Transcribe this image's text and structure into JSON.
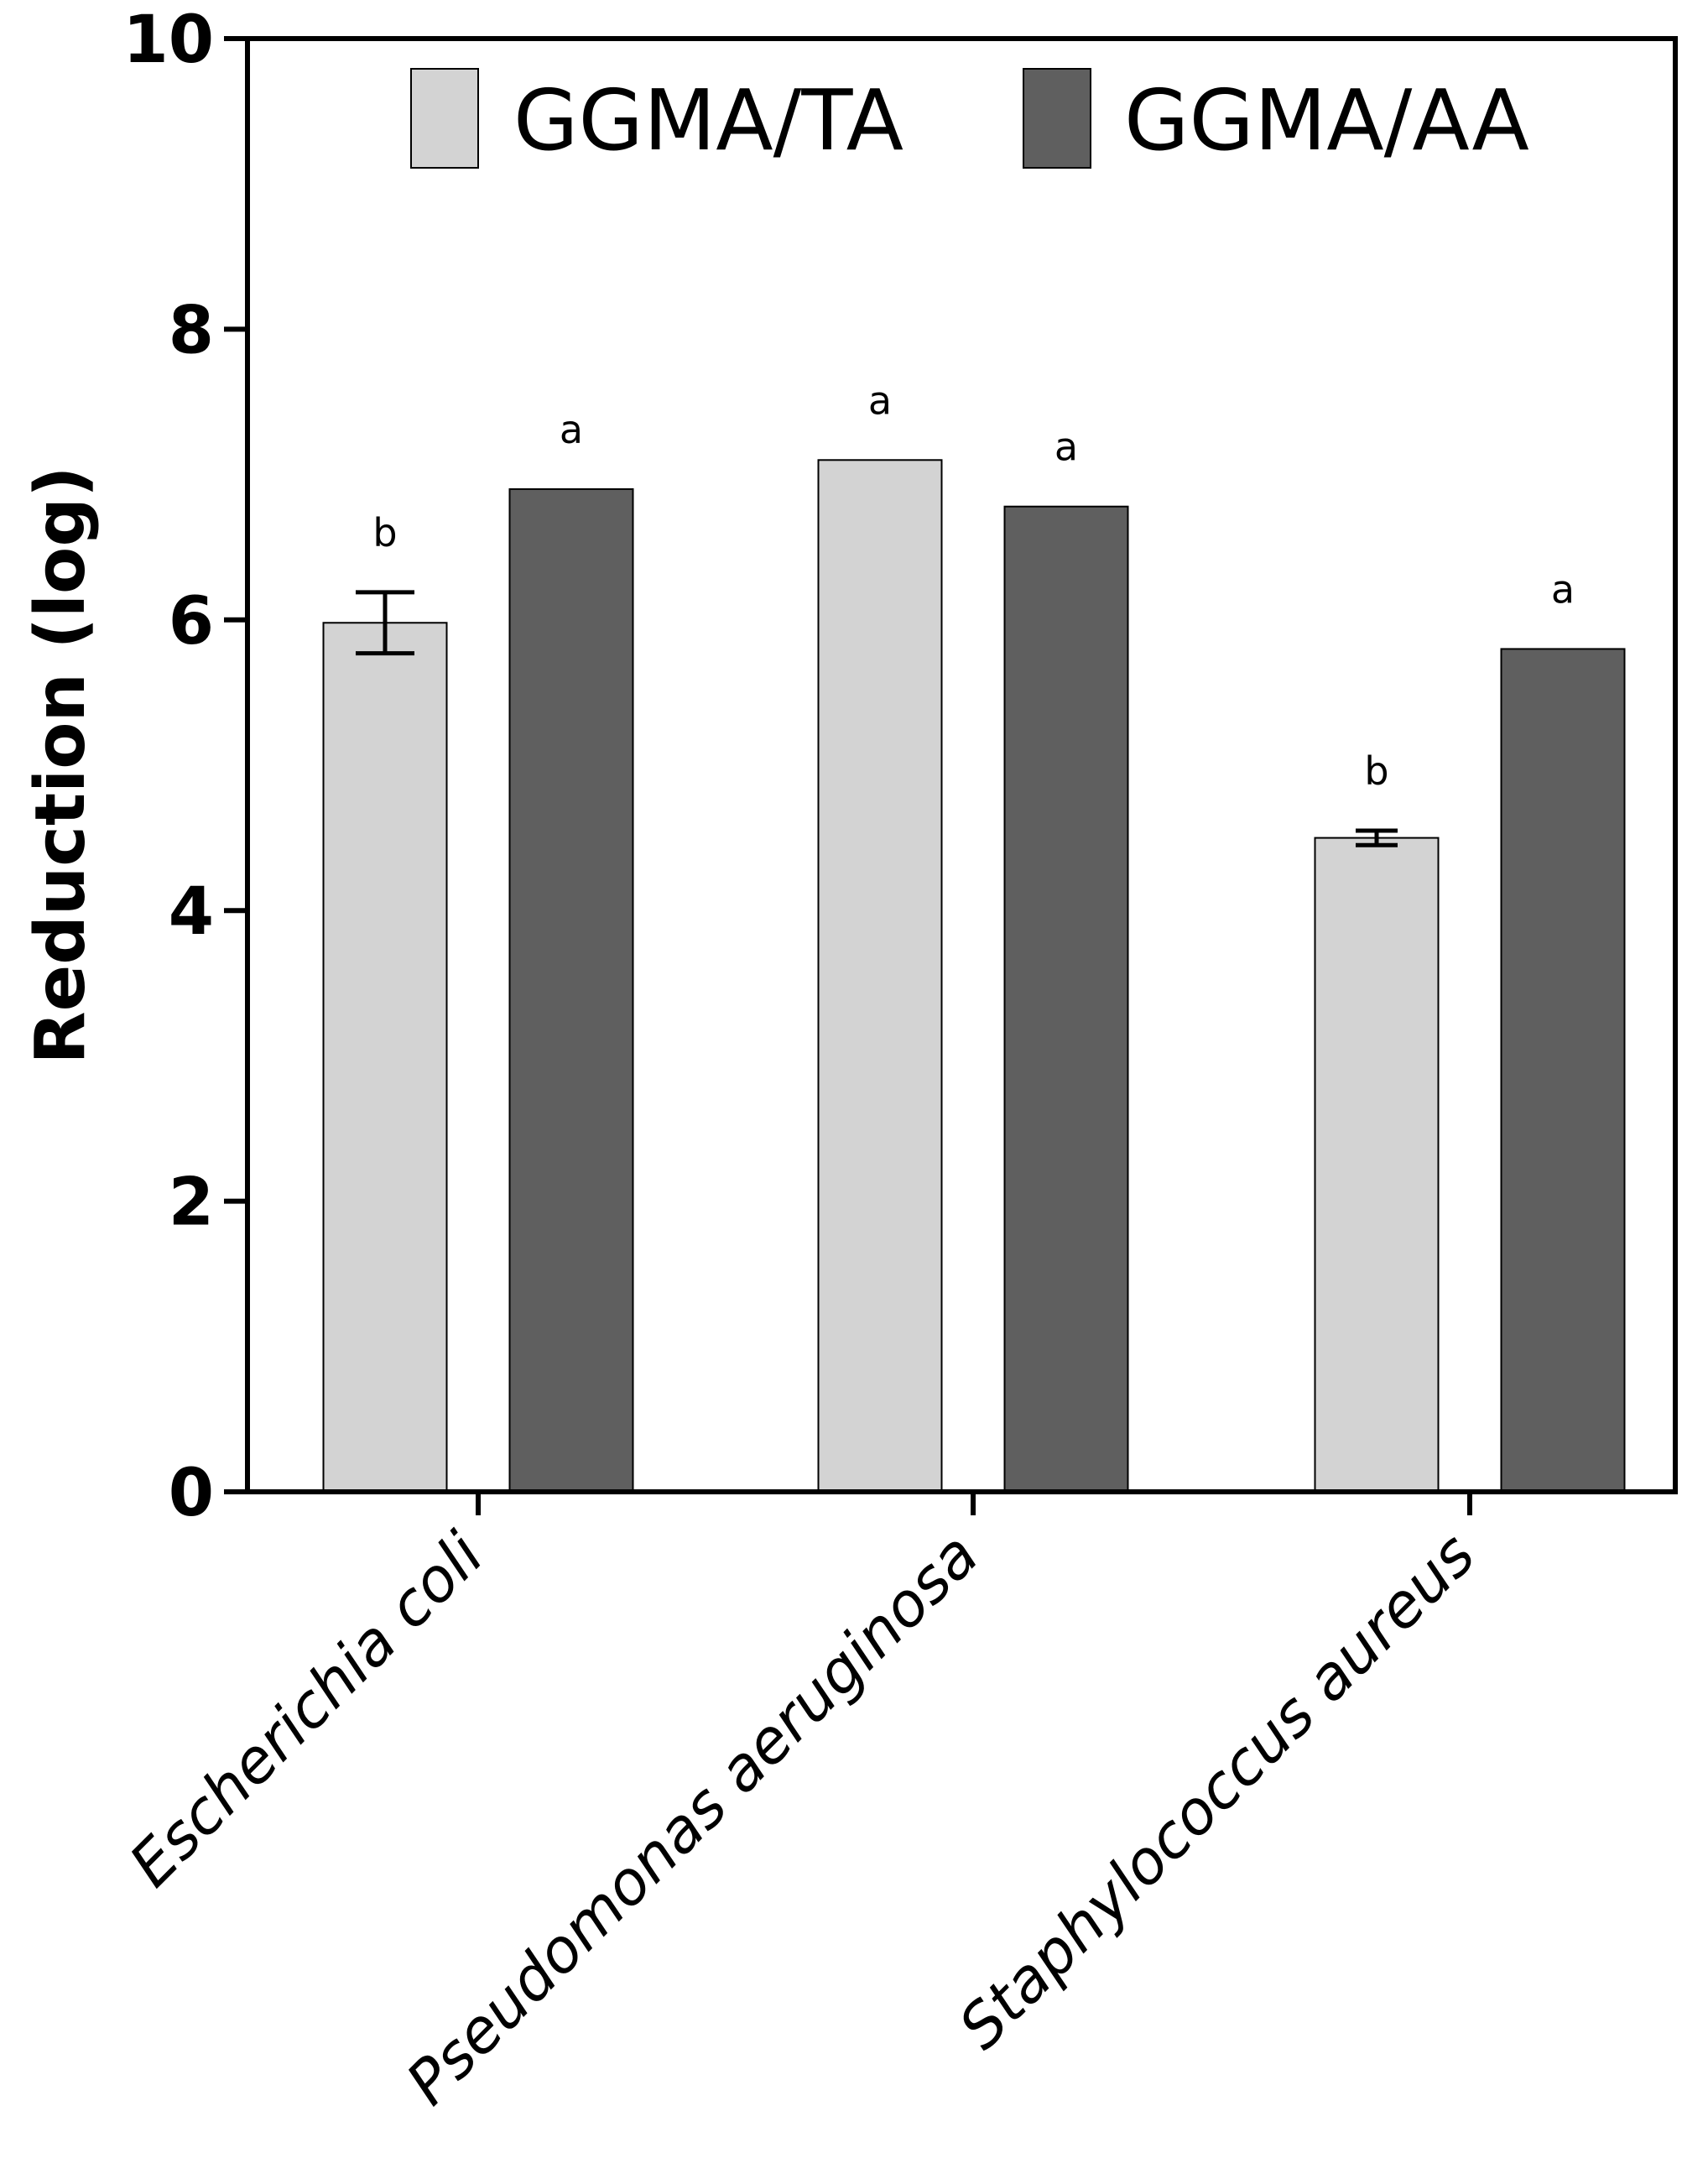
{
  "chart_data": {
    "type": "bar",
    "title": "",
    "xlabel": "",
    "ylabel": "Reduction (log)",
    "ylim": [
      0,
      10
    ],
    "yticks": [
      0,
      2,
      4,
      6,
      8,
      10
    ],
    "grid": false,
    "legend_position": "top",
    "categories": [
      "Escherichia coli",
      "Pseudomonas aeruginosa",
      "Staphylococcus aureus"
    ],
    "series": [
      {
        "name": "GGMA/TA",
        "color": "#d3d3d3",
        "values": [
          5.98,
          7.1,
          4.5
        ],
        "errors": [
          0.21,
          null,
          0.05
        ],
        "sig_labels": [
          "b",
          "a",
          "b"
        ]
      },
      {
        "name": "GGMA/AA",
        "color": "#5f5f5f",
        "values": [
          6.9,
          6.78,
          5.8
        ],
        "errors": [
          null,
          null,
          null
        ],
        "sig_labels": [
          "a",
          "a",
          "a"
        ]
      }
    ]
  }
}
